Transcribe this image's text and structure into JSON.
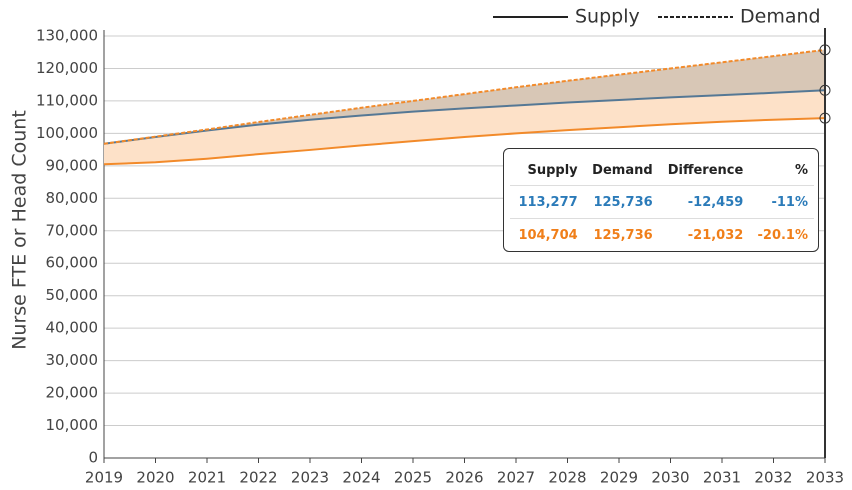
{
  "chart_data": {
    "type": "line",
    "y_label": "Nurse FTE or Head Count",
    "x": [
      2019,
      2020,
      2021,
      2022,
      2023,
      2024,
      2025,
      2026,
      2027,
      2028,
      2029,
      2030,
      2031,
      2032,
      2033
    ],
    "xlim": [
      2019,
      2033
    ],
    "xticks": [
      2019,
      2020,
      2021,
      2022,
      2023,
      2024,
      2025,
      2026,
      2027,
      2028,
      2029,
      2030,
      2031,
      2032,
      2033
    ],
    "ylim": [
      0,
      130000
    ],
    "yticks": [
      0,
      {
        "value": 10000,
        "label": "10,000"
      },
      {
        "value": 20000,
        "label": "20,000"
      },
      {
        "value": 30000,
        "label": "30,000"
      },
      {
        "value": 40000,
        "label": "40,000"
      },
      {
        "value": 50000,
        "label": "50,000"
      },
      {
        "value": 60000,
        "label": "60,000"
      },
      {
        "value": 70000,
        "label": "70,000"
      },
      {
        "value": 80000,
        "label": "80,000"
      },
      {
        "value": 90000,
        "label": "90,000"
      },
      {
        "value": 100000,
        "label": "100,000"
      },
      {
        "value": 110000,
        "label": "110,000"
      },
      {
        "value": 120000,
        "label": "120,000"
      },
      {
        "value": 130000,
        "label": "130,000"
      }
    ],
    "grid": true,
    "legend": [
      {
        "label": "Supply",
        "style": "solid"
      },
      {
        "label": "Demand",
        "style": "dashed"
      }
    ],
    "series": [
      {
        "color": "#557895",
        "fill": "#d8c7b6",
        "style": "solid",
        "values": [
          96800,
          98900,
          100900,
          102700,
          104200,
          105500,
          106700,
          107700,
          108600,
          109500,
          110300,
          111100,
          111800,
          112500,
          113277
        ]
      },
      {
        "color": "#f28a2a",
        "fill": "#fde1c8",
        "style": "solid",
        "values": [
          90500,
          91100,
          92200,
          93600,
          94900,
          96300,
          97600,
          98900,
          100000,
          101000,
          101900,
          102800,
          103600,
          104200,
          104704
        ]
      },
      {
        "color": "#f28a2a",
        "style": "dashed",
        "values": [
          96800,
          99000,
          101200,
          103500,
          105700,
          107900,
          110000,
          112100,
          114200,
          116200,
          118100,
          120000,
          121900,
          123800,
          125736
        ]
      }
    ],
    "table": {
      "header": [
        "Supply",
        "Demand",
        "Difference",
        "%"
      ],
      "rows": [
        {
          "color": "#2b7bb9",
          "cells": [
            "113,277",
            "125,736",
            "-12,459",
            "-11%"
          ]
        },
        {
          "color": "#f07f1a",
          "cells": [
            "104,704",
            "125,736",
            "-21,032",
            "-20.1%"
          ]
        }
      ]
    }
  }
}
